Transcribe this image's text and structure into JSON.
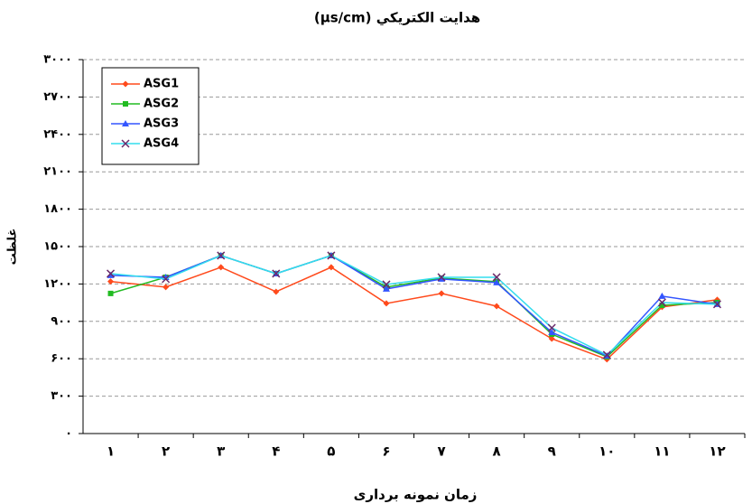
{
  "chart_data": {
    "type": "line",
    "title": "هدايت الكتريكي (µs/cm)",
    "x_label": "زمان نمونه برداری",
    "y_label": "غلظت",
    "categories": [
      "۱",
      "۲",
      "۳",
      "۴",
      "۵",
      "۶",
      "۷",
      "۸",
      "۹",
      "۱۰",
      "۱۱",
      "۱۲"
    ],
    "series": [
      {
        "name": "ASG1",
        "color": "#ff4a1c",
        "marker": "diamond",
        "values": [
          1220,
          1175,
          1334,
          1138,
          1334,
          1044,
          1124,
          1022,
          761,
          595,
          1015,
          1073
        ]
      },
      {
        "name": "ASG2",
        "color": "#22bb22",
        "marker": "square",
        "values": [
          1124,
          1254,
          1428,
          1283,
          1428,
          1175,
          1247,
          1218,
          797,
          616,
          1029,
          1051
        ]
      },
      {
        "name": "ASG3",
        "color": "#3355ff",
        "marker": "triangle",
        "values": [
          1269,
          1254,
          1428,
          1283,
          1428,
          1160,
          1240,
          1211,
          812,
          623,
          1102,
          1037
        ]
      },
      {
        "name": "ASG4",
        "color": "#33ddee",
        "marker": "cross",
        "values": [
          1283,
          1240,
          1428,
          1283,
          1428,
          1196,
          1254,
          1254,
          848,
          631,
          1051,
          1037
        ]
      }
    ],
    "ylim": [
      0,
      3000
    ],
    "yticks": [
      {
        "value": 0,
        "label": "۰"
      },
      {
        "value": 300,
        "label": "۳۰۰"
      },
      {
        "value": 600,
        "label": "۶۰۰"
      },
      {
        "value": 900,
        "label": "۹۰۰"
      },
      {
        "value": 1200,
        "label": "۱۲۰۰"
      },
      {
        "value": 1500,
        "label": "۱۵۰۰"
      },
      {
        "value": 1800,
        "label": "۱۸۰۰"
      },
      {
        "value": 2100,
        "label": "۲۱۰۰"
      },
      {
        "value": 2400,
        "label": "۲۴۰۰"
      },
      {
        "value": 2700,
        "label": "۲۷۰۰"
      },
      {
        "value": 3000,
        "label": "۳۰۰۰"
      }
    ],
    "grid": true,
    "legend": "top-left"
  }
}
